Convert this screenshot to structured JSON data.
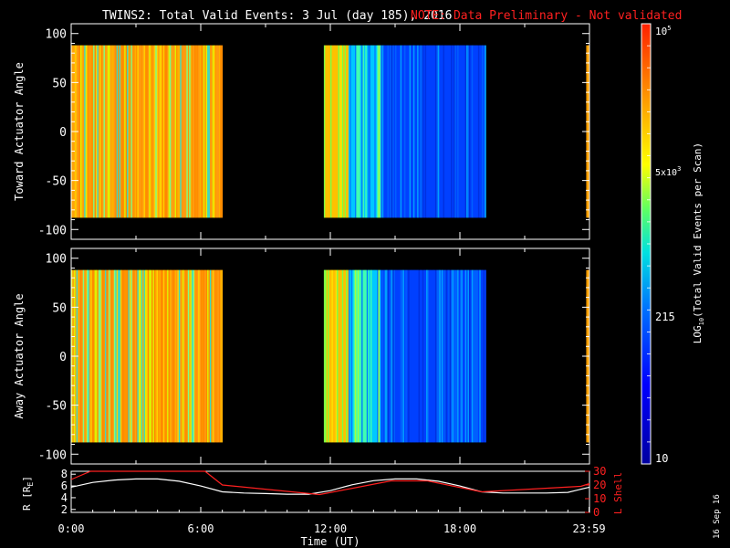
{
  "title": {
    "main": "TWINS2: Total Valid Events:  3 Jul (day 185), 2016",
    "note": "NOTE: Data Preliminary - Not validated"
  },
  "colors": {
    "background": "#000000",
    "foreground": "#ffffff",
    "note": "#ff2020",
    "r_line": "#ffffff",
    "lshell_line": "#ff2020"
  },
  "chart_data": [
    {
      "type": "heatmap",
      "name": "toward-panel",
      "ylabel": "Toward Actuator Angle",
      "ylim": [
        -110,
        110
      ],
      "yticks": [
        100,
        50,
        0,
        -50,
        -100
      ],
      "xlim": [
        0,
        24
      ],
      "data_yrange": [
        -88,
        88
      ],
      "data_intervals": [
        [
          0,
          7
        ],
        [
          11.7,
          19.2
        ],
        [
          23.85,
          24
        ]
      ],
      "colorbar": "log10 events 10..100000"
    },
    {
      "type": "heatmap",
      "name": "away-panel",
      "ylabel": "Away Actuator Angle",
      "ylim": [
        -110,
        110
      ],
      "yticks": [
        100,
        50,
        0,
        -50,
        -100
      ],
      "xlim": [
        0,
        24
      ],
      "data_yrange": [
        -88,
        88
      ],
      "data_intervals": [
        [
          0,
          7
        ],
        [
          11.7,
          19.2
        ],
        [
          23.85,
          24
        ]
      ]
    },
    {
      "type": "line",
      "name": "orbit-panel",
      "ylabel_left": "R [R",
      "ylabel_left_sub": "E",
      "ylabel_left_end": "]",
      "ylabel_right": "L Shell",
      "ylim_left": [
        1.5,
        8.5
      ],
      "ylim_right": [
        0,
        30
      ],
      "yticks_left": [
        2,
        4,
        6,
        8
      ],
      "yticks_right": [
        0,
        10,
        20,
        30
      ],
      "xlim": [
        0,
        24
      ],
      "series": [
        {
          "axis": "left",
          "x": [
            0,
            1,
            2,
            3,
            4,
            5,
            6,
            7,
            8,
            9,
            10,
            11,
            12,
            13,
            14,
            15,
            16,
            17,
            18,
            19,
            20,
            21,
            22,
            23,
            24
          ],
          "y": [
            5.8,
            6.6,
            7.0,
            7.2,
            7.2,
            6.8,
            6.0,
            5.0,
            4.8,
            4.7,
            4.6,
            4.6,
            5.2,
            6.2,
            6.9,
            7.2,
            7.2,
            6.8,
            6.0,
            5.0,
            4.8,
            4.8,
            4.8,
            4.9,
            5.8
          ]
        },
        {
          "axis": "right",
          "x": [
            0,
            0.9,
            6.2,
            7,
            11.5,
            14.8,
            16.5,
            19,
            23.6,
            24
          ],
          "y": [
            24,
            30,
            30,
            20,
            13,
            23,
            23,
            15,
            19,
            21
          ]
        }
      ],
      "xticks": [
        "0:00",
        "6:00",
        "12:00",
        "18:00",
        "23:59"
      ],
      "xtick_values": [
        0,
        6,
        12,
        18,
        23.98
      ],
      "xlabel": "Time (UT)"
    }
  ],
  "colorbar": {
    "label_pre": "LOG",
    "label_sub": "10",
    "label_post": "(Total Valid  Events per Scan)",
    "ticks": [
      {
        "base": "10",
        "exp": "5"
      },
      {
        "base": "5x10",
        "exp": "3"
      },
      {
        "base": "215",
        "exp": ""
      },
      {
        "base": "10",
        "exp": ""
      }
    ]
  },
  "footer": {
    "date_stamp": "16 Sep 16"
  }
}
